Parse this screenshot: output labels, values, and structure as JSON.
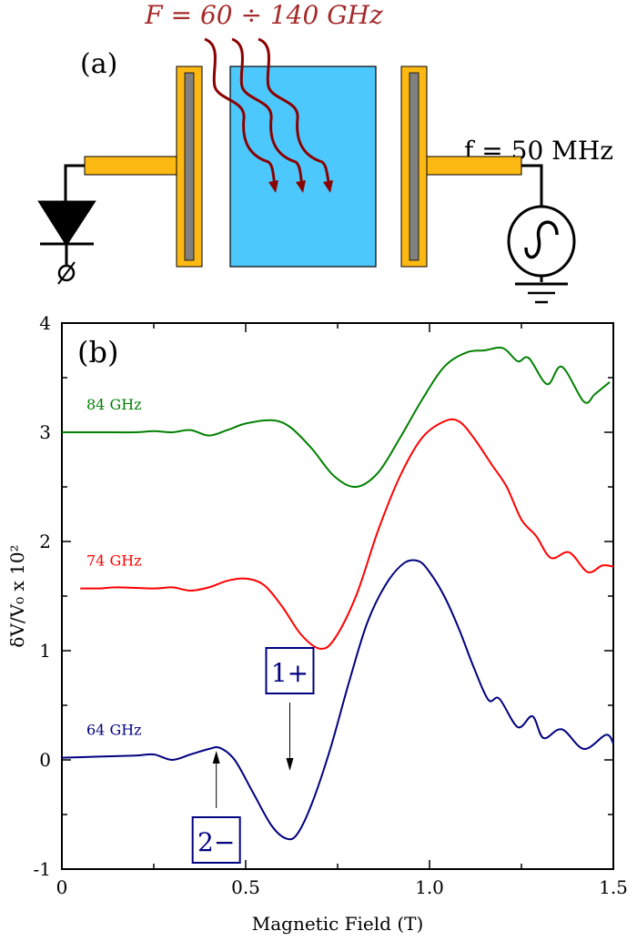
{
  "schematic": {
    "panel_label": "(a)",
    "microwave_label": "F = 60 ÷ 140 GHz",
    "rf_label": "f = 50 MHz",
    "colors": {
      "electrode": "#fdb913",
      "electrode_core": "#808080",
      "sample": "#4dc8fc",
      "microwave": "#8b0000"
    }
  },
  "chart_data": {
    "type": "line",
    "panel_label": "(b)",
    "xlabel": "Magnetic Field (T)",
    "ylabel": "δV/V₀ x 10²",
    "xlim": [
      0,
      1.5
    ],
    "ylim": [
      -1,
      4
    ],
    "xticks": [
      "0",
      "0.5",
      "1.0",
      "1.5"
    ],
    "yticks": [
      "-1",
      "0",
      "1",
      "2",
      "3",
      "4"
    ],
    "grid": false,
    "series": [
      {
        "name": "84 GHz",
        "color": "#008000",
        "x": [
          0,
          0.1,
          0.2,
          0.25,
          0.3,
          0.35,
          0.4,
          0.45,
          0.5,
          0.57,
          0.62,
          0.68,
          0.74,
          0.8,
          0.86,
          0.92,
          0.98,
          1.04,
          1.1,
          1.15,
          1.2,
          1.24,
          1.27,
          1.32,
          1.36,
          1.42,
          1.45,
          1.49
        ],
        "y": [
          3.0,
          3.0,
          3.0,
          3.01,
          3.0,
          3.02,
          2.97,
          3.02,
          3.08,
          3.11,
          3.05,
          2.85,
          2.6,
          2.5,
          2.63,
          2.95,
          3.3,
          3.6,
          3.73,
          3.75,
          3.77,
          3.65,
          3.68,
          3.44,
          3.6,
          3.28,
          3.35,
          3.46
        ]
      },
      {
        "name": "74 GHz",
        "color": "#ff0000",
        "x": [
          0.05,
          0.1,
          0.15,
          0.25,
          0.3,
          0.35,
          0.4,
          0.45,
          0.5,
          0.55,
          0.6,
          0.65,
          0.7,
          0.74,
          0.8,
          0.86,
          0.92,
          0.98,
          1.04,
          1.08,
          1.12,
          1.17,
          1.21,
          1.25,
          1.29,
          1.33,
          1.38,
          1.43,
          1.47,
          1.5
        ],
        "y": [
          1.57,
          1.57,
          1.58,
          1.57,
          1.58,
          1.55,
          1.58,
          1.64,
          1.66,
          1.6,
          1.4,
          1.15,
          1.02,
          1.1,
          1.5,
          2.1,
          2.6,
          2.95,
          3.1,
          3.1,
          2.95,
          2.7,
          2.5,
          2.2,
          2.05,
          1.85,
          1.9,
          1.72,
          1.78,
          1.77
        ]
      },
      {
        "name": "64 GHz",
        "color": "#000080",
        "x": [
          0,
          0.1,
          0.2,
          0.25,
          0.3,
          0.35,
          0.4,
          0.43,
          0.47,
          0.52,
          0.57,
          0.61,
          0.64,
          0.68,
          0.73,
          0.78,
          0.83,
          0.88,
          0.93,
          0.97,
          1.0,
          1.04,
          1.08,
          1.12,
          1.16,
          1.19,
          1.24,
          1.28,
          1.31,
          1.36,
          1.42,
          1.48,
          1.5
        ],
        "y": [
          0.02,
          0.03,
          0.04,
          0.05,
          0.0,
          0.05,
          0.1,
          0.11,
          0.0,
          -0.3,
          -0.6,
          -0.72,
          -0.68,
          -0.4,
          0.1,
          0.7,
          1.25,
          1.6,
          1.8,
          1.82,
          1.72,
          1.5,
          1.2,
          0.85,
          0.55,
          0.56,
          0.3,
          0.4,
          0.2,
          0.28,
          0.1,
          0.23,
          0.15
        ]
      }
    ],
    "annotations": [
      {
        "text": "1+",
        "arrow_to": [
          0.62,
          -0.1
        ],
        "direction": "down"
      },
      {
        "text": "2−",
        "arrow_to": [
          0.42,
          0.1
        ],
        "direction": "up"
      }
    ]
  }
}
